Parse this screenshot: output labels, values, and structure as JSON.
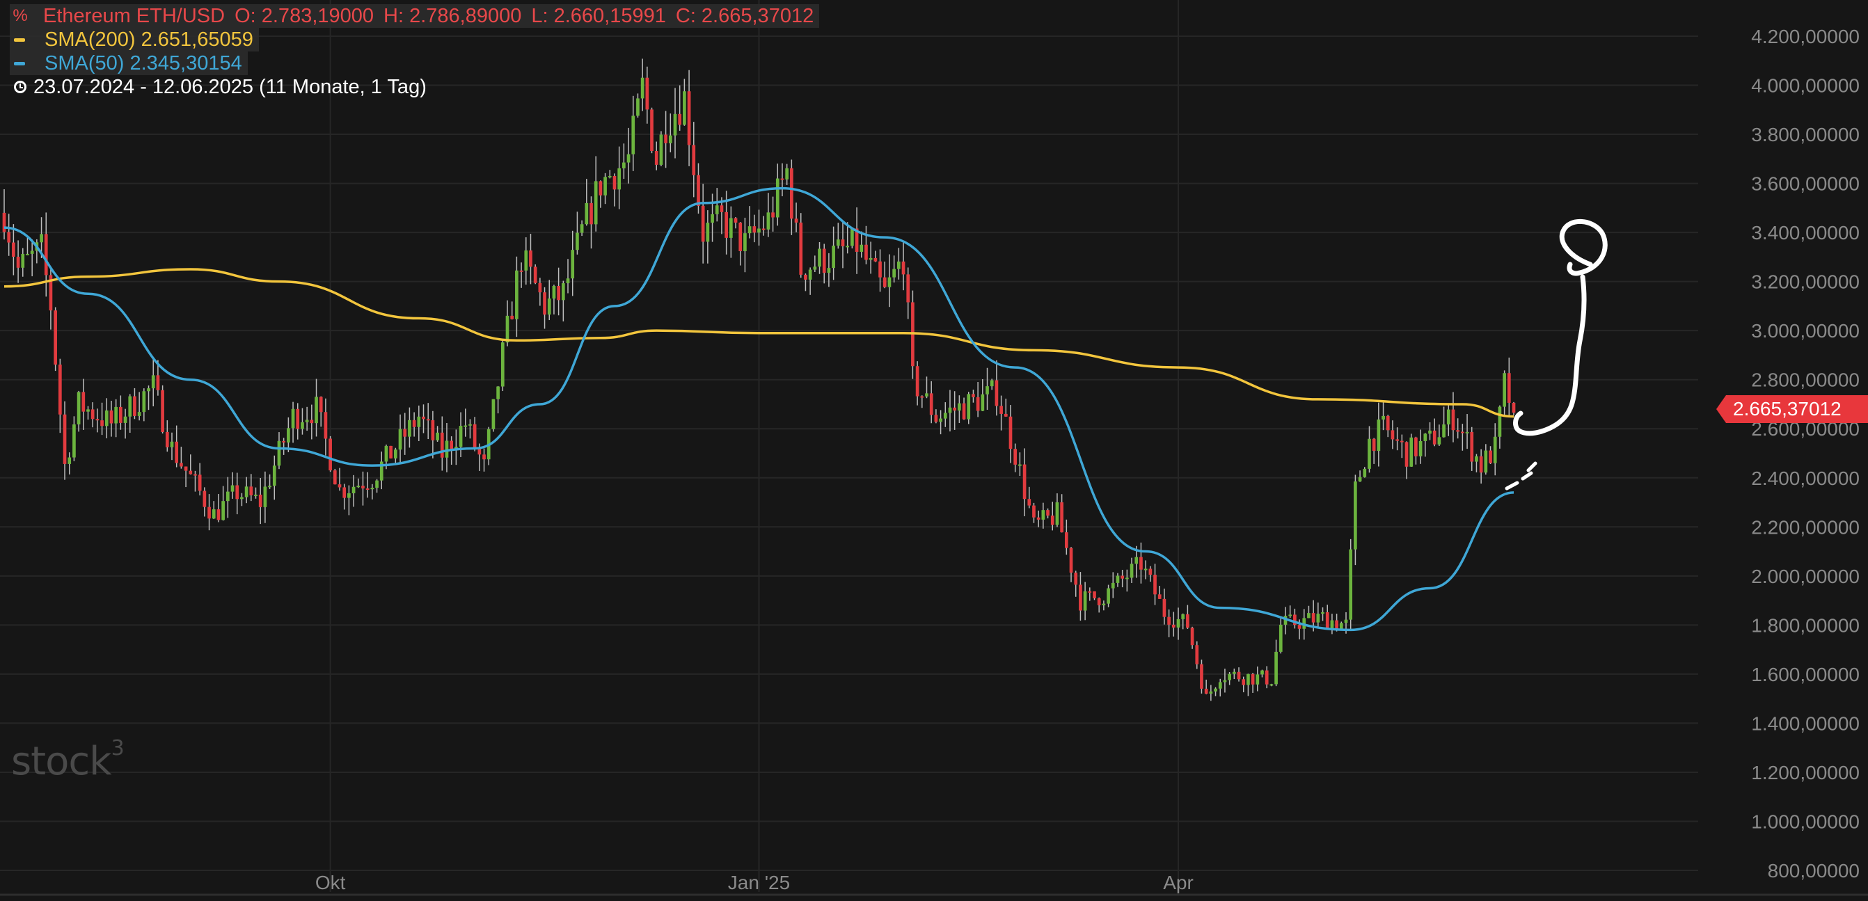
{
  "legend": {
    "instrument": "Ethereum ETH/USD",
    "open": "O: 2.783,19000",
    "high": "H: 2.786,89000",
    "low": "L: 2.660,15991",
    "close": "C: 2.665,37012",
    "sma200_label": "SMA(200) 2.651,65059",
    "sma50_label": "SMA(50) 2.345,30154",
    "range_label": "23.07.2024 - 12.06.2025  (11 Monate, 1 Tag)",
    "instrument_icon": "percent-icon",
    "clock_icon": "clock-icon"
  },
  "watermark": {
    "brand": "stock",
    "superscript": "3"
  },
  "last_price": "2.665,37012",
  "colors": {
    "background": "#161616",
    "up": "#6cb43e",
    "down": "#e23b3f",
    "sma200": "#f2c53d",
    "sma50": "#3fa7d6",
    "axis_text": "#8a8a8a",
    "grid": "#262626",
    "legend_red": "#e8484a",
    "annotation": "#ffffff"
  },
  "chart_data": {
    "type": "candlestick",
    "x_range": [
      "2024-07-23",
      "2025-06-12"
    ],
    "ylim": [
      800,
      4200
    ],
    "y_ticks": [
      {
        "value": 4200,
        "label": "4.200,00000"
      },
      {
        "value": 4000,
        "label": "4.000,00000"
      },
      {
        "value": 3800,
        "label": "3.800,00000"
      },
      {
        "value": 3600,
        "label": "3.600,00000"
      },
      {
        "value": 3400,
        "label": "3.400,00000"
      },
      {
        "value": 3200,
        "label": "3.200,00000"
      },
      {
        "value": 3000,
        "label": "3.000,00000"
      },
      {
        "value": 2800,
        "label": "2.800,00000"
      },
      {
        "value": 2600,
        "label": "2.600,00000"
      },
      {
        "value": 2400,
        "label": "2.400,00000"
      },
      {
        "value": 2200,
        "label": "2.200,00000"
      },
      {
        "value": 2000,
        "label": "2.000,00000"
      },
      {
        "value": 1800,
        "label": "1.800,00000"
      },
      {
        "value": 1600,
        "label": "1.600,00000"
      },
      {
        "value": 1400,
        "label": "1.400,00000"
      },
      {
        "value": 1200,
        "label": "1.200,00000"
      },
      {
        "value": 1000,
        "label": "1.000,00000"
      },
      {
        "value": 800,
        "label": "800,00000"
      }
    ],
    "x_ticks": [
      {
        "date": "2024-10-01",
        "label": "Okt"
      },
      {
        "date": "2025-01-01",
        "label": "Jan '25"
      },
      {
        "date": "2025-04-01",
        "label": "Apr"
      }
    ],
    "grid": true,
    "price_path": [
      [
        "2024-07-23",
        3480
      ],
      [
        "2024-07-26",
        3250
      ],
      [
        "2024-07-31",
        3330
      ],
      [
        "2024-08-02",
        3100
      ],
      [
        "2024-08-05",
        2450
      ],
      [
        "2024-08-08",
        2700
      ],
      [
        "2024-08-15",
        2620
      ],
      [
        "2024-08-24",
        2770
      ],
      [
        "2024-08-28",
        2520
      ],
      [
        "2024-09-06",
        2250
      ],
      [
        "2024-09-11",
        2340
      ],
      [
        "2024-09-16",
        2300
      ],
      [
        "2024-09-23",
        2650
      ],
      [
        "2024-09-28",
        2680
      ],
      [
        "2024-10-03",
        2350
      ],
      [
        "2024-10-10",
        2400
      ],
      [
        "2024-10-20",
        2650
      ],
      [
        "2024-10-25",
        2500
      ],
      [
        "2024-10-30",
        2620
      ],
      [
        "2024-11-03",
        2440
      ],
      [
        "2024-11-07",
        2900
      ],
      [
        "2024-11-11",
        3300
      ],
      [
        "2024-11-16",
        3100
      ],
      [
        "2024-11-20",
        3150
      ],
      [
        "2024-11-24",
        3400
      ],
      [
        "2024-11-28",
        3600
      ],
      [
        "2024-12-04",
        3700
      ],
      [
        "2024-12-07",
        3990
      ],
      [
        "2024-12-10",
        3700
      ],
      [
        "2024-12-12",
        3850
      ],
      [
        "2024-12-16",
        3950
      ],
      [
        "2024-12-20",
        3400
      ],
      [
        "2024-12-24",
        3450
      ],
      [
        "2024-12-29",
        3350
      ],
      [
        "2025-01-03",
        3450
      ],
      [
        "2025-01-07",
        3650
      ],
      [
        "2025-01-10",
        3250
      ],
      [
        "2025-01-16",
        3300
      ],
      [
        "2025-01-22",
        3350
      ],
      [
        "2025-01-28",
        3150
      ],
      [
        "2025-02-01",
        3300
      ],
      [
        "2025-02-03",
        2800
      ],
      [
        "2025-02-08",
        2650
      ],
      [
        "2025-02-15",
        2700
      ],
      [
        "2025-02-21",
        2750
      ],
      [
        "2025-02-25",
        2500
      ],
      [
        "2025-03-01",
        2200
      ],
      [
        "2025-03-06",
        2250
      ],
      [
        "2025-03-11",
        1900
      ],
      [
        "2025-03-16",
        1920
      ],
      [
        "2025-03-24",
        2050
      ],
      [
        "2025-03-29",
        1850
      ],
      [
        "2025-04-03",
        1800
      ],
      [
        "2025-04-07",
        1500
      ],
      [
        "2025-04-10",
        1600
      ],
      [
        "2025-04-21",
        1580
      ],
      [
        "2025-04-23",
        1800
      ],
      [
        "2025-05-02",
        1830
      ],
      [
        "2025-05-07",
        1800
      ],
      [
        "2025-05-09",
        2350
      ],
      [
        "2025-05-12",
        2550
      ],
      [
        "2025-05-15",
        2600
      ],
      [
        "2025-05-20",
        2500
      ],
      [
        "2025-05-25",
        2550
      ],
      [
        "2025-05-30",
        2650
      ],
      [
        "2025-06-05",
        2450
      ],
      [
        "2025-06-08",
        2520
      ],
      [
        "2025-06-10",
        2780
      ],
      [
        "2025-06-12",
        2665
      ]
    ],
    "series": [
      {
        "name": "SMA(200)",
        "color": "#f2c53d",
        "points": [
          [
            "2024-07-23",
            3180
          ],
          [
            "2024-08-10",
            3220
          ],
          [
            "2024-09-01",
            3250
          ],
          [
            "2024-09-20",
            3200
          ],
          [
            "2024-10-20",
            3050
          ],
          [
            "2024-11-10",
            2960
          ],
          [
            "2024-11-28",
            2970
          ],
          [
            "2024-12-10",
            3000
          ],
          [
            "2025-01-01",
            2990
          ],
          [
            "2025-02-01",
            2990
          ],
          [
            "2025-03-01",
            2920
          ],
          [
            "2025-04-01",
            2850
          ],
          [
            "2025-05-01",
            2720
          ],
          [
            "2025-06-01",
            2700
          ],
          [
            "2025-06-12",
            2650
          ]
        ]
      },
      {
        "name": "SMA(50)",
        "color": "#3fa7d6",
        "points": [
          [
            "2024-07-23",
            3420
          ],
          [
            "2024-08-10",
            3150
          ],
          [
            "2024-09-01",
            2800
          ],
          [
            "2024-09-20",
            2520
          ],
          [
            "2024-10-10",
            2450
          ],
          [
            "2024-11-01",
            2520
          ],
          [
            "2024-11-15",
            2700
          ],
          [
            "2024-12-01",
            3100
          ],
          [
            "2024-12-20",
            3520
          ],
          [
            "2025-01-06",
            3580
          ],
          [
            "2025-01-28",
            3380
          ],
          [
            "2025-02-25",
            2850
          ],
          [
            "2025-03-25",
            2100
          ],
          [
            "2025-04-10",
            1870
          ],
          [
            "2025-05-08",
            1780
          ],
          [
            "2025-05-25",
            1950
          ],
          [
            "2025-06-12",
            2340
          ]
        ]
      }
    ],
    "last_value": 2665.37
  }
}
